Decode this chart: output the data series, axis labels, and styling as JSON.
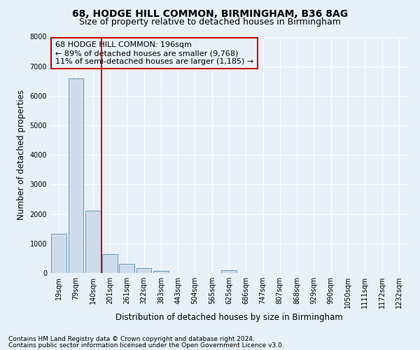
{
  "title_line1": "68, HODGE HILL COMMON, BIRMINGHAM, B36 8AG",
  "title_line2": "Size of property relative to detached houses in Birmingham",
  "xlabel": "Distribution of detached houses by size in Birmingham",
  "ylabel": "Number of detached properties",
  "footnote1": "Contains HM Land Registry data © Crown copyright and database right 2024.",
  "footnote2": "Contains public sector information licensed under the Open Government Licence v3.0.",
  "annotation_line1": "68 HODGE HILL COMMON: 196sqm",
  "annotation_line2": "← 89% of detached houses are smaller (9,768)",
  "annotation_line3": "11% of semi-detached houses are larger (1,185) →",
  "bar_color": "#ccdcec",
  "bar_edge_color": "#6699bb",
  "vline_color": "#cc0000",
  "vline_x_index": 3,
  "categories": [
    "19sqm",
    "79sqm",
    "140sqm",
    "201sqm",
    "261sqm",
    "322sqm",
    "383sqm",
    "443sqm",
    "504sqm",
    "565sqm",
    "625sqm",
    "686sqm",
    "747sqm",
    "807sqm",
    "868sqm",
    "929sqm",
    "990sqm",
    "1050sqm",
    "1111sqm",
    "1172sqm",
    "1232sqm"
  ],
  "values": [
    1320,
    6600,
    2100,
    650,
    310,
    155,
    70,
    0,
    0,
    0,
    100,
    0,
    0,
    0,
    0,
    0,
    0,
    0,
    0,
    0,
    0
  ],
  "ylim": [
    0,
    8000
  ],
  "yticks": [
    0,
    1000,
    2000,
    3000,
    4000,
    5000,
    6000,
    7000,
    8000
  ],
  "background_color": "#e8f0f8",
  "grid_color": "#ffffff",
  "title_fontsize": 10,
  "subtitle_fontsize": 9,
  "tick_fontsize": 7,
  "label_fontsize": 8.5,
  "annotation_fontsize": 8,
  "footnote_fontsize": 6.5
}
